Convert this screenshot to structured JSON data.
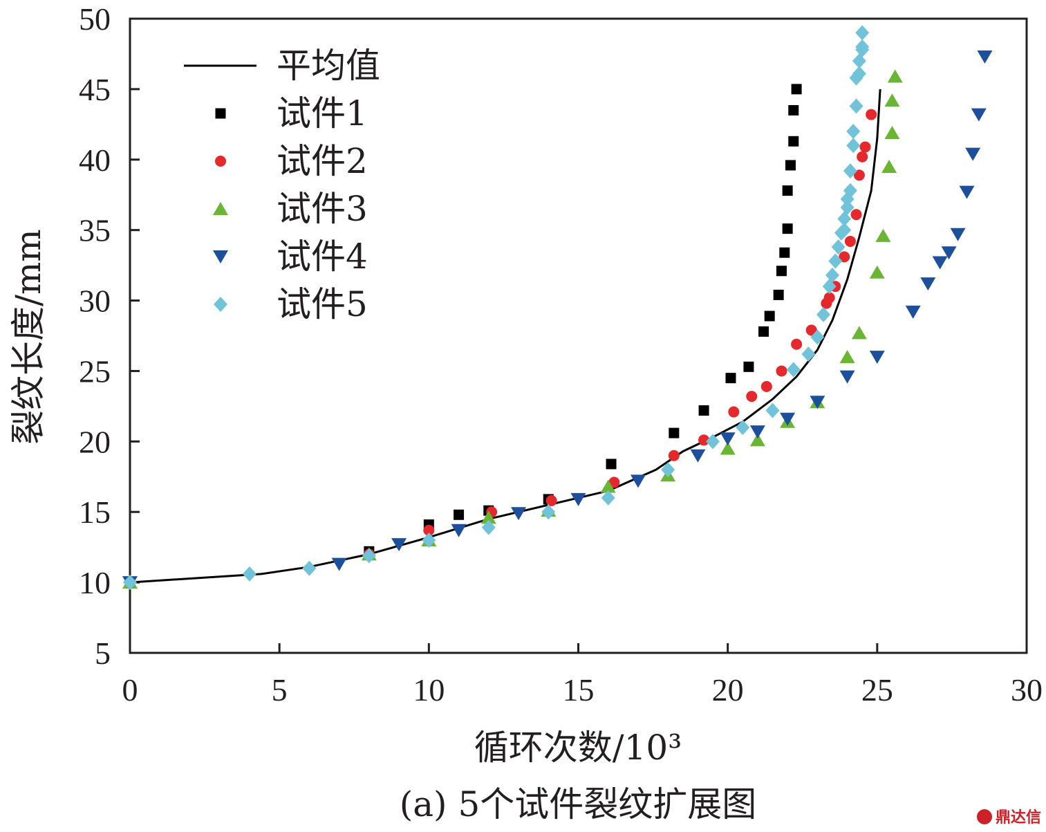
{
  "chart_data": {
    "type": "scatter",
    "title": "",
    "caption": "(a) 5个试件裂纹扩展图",
    "xlabel": "循环次数/10³",
    "ylabel": "裂纹长度/mm",
    "xlim": [
      0,
      30
    ],
    "ylim": [
      5,
      50
    ],
    "xticks": [
      "0",
      "5",
      "10",
      "15",
      "20",
      "25",
      "30"
    ],
    "yticks": [
      "5",
      "10",
      "15",
      "20",
      "25",
      "30",
      "35",
      "40",
      "45",
      "50"
    ],
    "grid": false,
    "legend_position": "top-left",
    "series": [
      {
        "name": "平均值",
        "kind": "line",
        "color": "#000000",
        "x": [
          0,
          4.4,
          6,
          8,
          10,
          12,
          14,
          16,
          17.6,
          18.5,
          19.5,
          20.5,
          21.5,
          22.3,
          23,
          23.5,
          24,
          24.4,
          24.8,
          25,
          25.1
        ],
        "y": [
          10,
          10.6,
          11.1,
          12.0,
          13.2,
          14.5,
          15.5,
          16.5,
          18.0,
          19.3,
          20.3,
          21.4,
          23.0,
          24.6,
          26.5,
          28.6,
          31.5,
          34.5,
          37.8,
          41.5,
          45.0
        ]
      },
      {
        "name": "试件1",
        "marker": "square",
        "color": "#000000",
        "x": [
          0,
          8,
          10,
          11,
          12,
          14,
          16.1,
          18.2,
          19.2,
          20.1,
          20.7,
          21.2,
          21.4,
          21.7,
          21.8,
          21.9,
          22.0,
          22.0,
          22.1,
          22.2,
          22.2,
          22.3
        ],
        "y": [
          10,
          12.2,
          14.1,
          14.8,
          15.1,
          15.9,
          18.4,
          20.6,
          22.2,
          24.5,
          25.3,
          27.8,
          28.9,
          30.4,
          32.1,
          33.4,
          35.1,
          37.8,
          39.6,
          41.3,
          43.5,
          45.0
        ]
      },
      {
        "name": "试件2",
        "marker": "circle",
        "color": "#e5282b",
        "x": [
          0,
          8,
          10,
          12.1,
          14.1,
          16.2,
          18.2,
          19.2,
          20.2,
          20.8,
          21.3,
          21.8,
          22.3,
          22.8,
          23.3,
          23.4,
          23.6,
          23.9,
          24.1,
          24.3,
          24.4,
          24.5,
          24.6,
          24.8
        ],
        "y": [
          10,
          12.0,
          13.7,
          15.0,
          15.8,
          17.1,
          19.0,
          20.1,
          22.1,
          23.2,
          23.9,
          25.0,
          26.9,
          27.9,
          29.8,
          30.2,
          31.0,
          33.1,
          34.2,
          36.1,
          38.9,
          40.2,
          40.9,
          43.2
        ]
      },
      {
        "name": "试件3",
        "marker": "triangle-up",
        "color": "#6ab534",
        "x": [
          0,
          8,
          10,
          12,
          14,
          16,
          18,
          20,
          21,
          22,
          23,
          24,
          24.4,
          25,
          25.2,
          25.4,
          25.5,
          25.5,
          25.6
        ],
        "y": [
          10,
          12.0,
          13.0,
          14.6,
          15.1,
          16.8,
          17.6,
          19.5,
          20.1,
          21.4,
          22.8,
          26.0,
          27.7,
          32.0,
          34.6,
          39.5,
          41.9,
          44.2,
          45.9
        ]
      },
      {
        "name": "试件4",
        "marker": "triangle-down",
        "color": "#1c4f9c",
        "x": [
          0,
          7,
          9,
          11,
          13,
          15,
          17,
          19,
          20,
          21,
          22,
          23,
          24,
          25,
          26.2,
          26.7,
          27.1,
          27.4,
          27.7,
          28.0,
          28.2,
          28.4,
          28.6
        ],
        "y": [
          10,
          11.3,
          12.7,
          13.7,
          14.9,
          15.9,
          17.2,
          19.0,
          20.2,
          20.7,
          21.6,
          22.8,
          24.6,
          26.0,
          29.2,
          31.2,
          32.7,
          33.4,
          34.7,
          37.7,
          40.4,
          43.2,
          47.3
        ]
      },
      {
        "name": "试件5",
        "marker": "diamond",
        "color": "#70c3d8",
        "x": [
          0,
          4,
          6,
          8,
          10,
          12,
          14,
          16,
          18,
          19.5,
          20.5,
          21.5,
          22.2,
          22.7,
          23,
          23.2,
          23.4,
          23.5,
          23.6,
          23.7,
          23.8,
          23.9,
          23.9,
          24.0,
          24.0,
          24.1,
          24.1,
          24.2,
          24.2,
          24.3,
          24.3,
          24.4,
          24.4,
          24.5,
          24.5,
          24.5
        ],
        "y": [
          10,
          10.6,
          11.0,
          11.9,
          13.0,
          13.9,
          15.0,
          16.0,
          18.0,
          20.0,
          21.0,
          22.2,
          25.1,
          26.2,
          27.4,
          29.0,
          31.0,
          31.8,
          32.8,
          33.8,
          34.8,
          35.0,
          35.8,
          36.6,
          37.2,
          37.8,
          39.2,
          41.0,
          42.0,
          43.8,
          45.8,
          46.1,
          47.0,
          47.8,
          48.0,
          49.0
        ]
      }
    ]
  },
  "watermark": "鼎达信"
}
